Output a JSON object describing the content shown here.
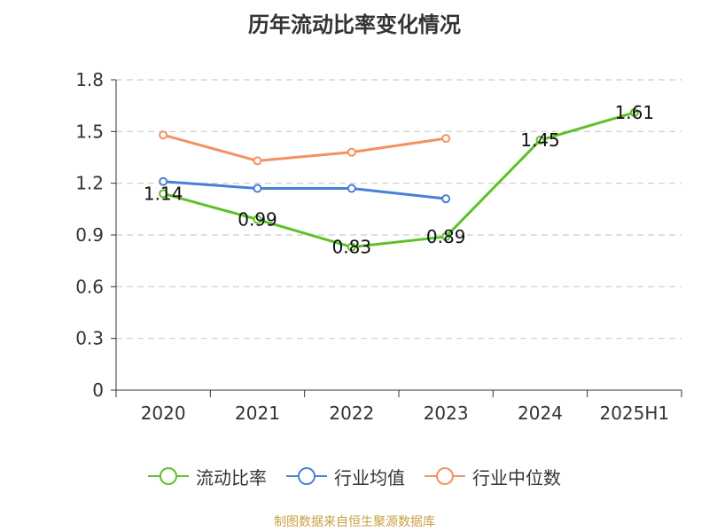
{
  "chart_data": {
    "type": "line",
    "title": "历年流动比率变化情况",
    "categories": [
      "2020",
      "2021",
      "2022",
      "2023",
      "2024",
      "2025H1"
    ],
    "ylim": [
      0,
      1.8
    ],
    "yticks": [
      "0",
      "0.3",
      "0.6",
      "0.9",
      "1.2",
      "1.5",
      "1.8"
    ],
    "grid": true,
    "legend_position": "bottom",
    "series": [
      {
        "name": "流动比率",
        "color": "#5ec12a",
        "values": [
          1.14,
          0.99,
          0.83,
          0.89,
          1.45,
          1.61
        ],
        "labels": [
          "1.14",
          "0.99",
          "0.83",
          "0.89",
          "1.45",
          "1.61"
        ]
      },
      {
        "name": "行业均值",
        "color": "#4a7fd8",
        "values": [
          1.21,
          1.17,
          1.17,
          1.11,
          null,
          null
        ]
      },
      {
        "name": "行业中位数",
        "color": "#f59060",
        "values": [
          1.48,
          1.33,
          1.38,
          1.46,
          null,
          null
        ]
      }
    ]
  },
  "source_note": "制图数据来自恒生聚源数据库"
}
